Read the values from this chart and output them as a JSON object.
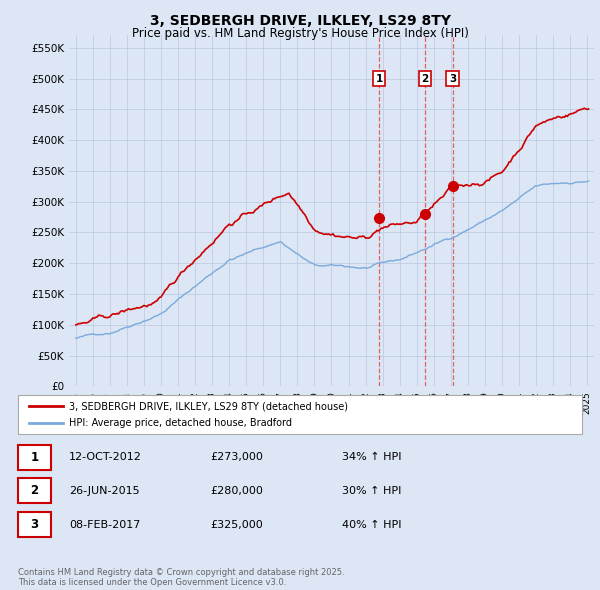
{
  "title": "3, SEDBERGH DRIVE, ILKLEY, LS29 8TY",
  "subtitle": "Price paid vs. HM Land Registry's House Price Index (HPI)",
  "ylim": [
    0,
    570000
  ],
  "yticks": [
    0,
    50000,
    100000,
    150000,
    200000,
    250000,
    300000,
    350000,
    400000,
    450000,
    500000,
    550000
  ],
  "ytick_labels": [
    "£0",
    "£50K",
    "£100K",
    "£150K",
    "£200K",
    "£250K",
    "£300K",
    "£350K",
    "£400K",
    "£450K",
    "£500K",
    "£550K"
  ],
  "house_color": "#cc0000",
  "hpi_color": "#7aaadd",
  "purchase_times": [
    2012.79,
    2015.49,
    2017.11
  ],
  "purchase_prices": [
    273000,
    280000,
    325000
  ],
  "purchase_labels": [
    "1",
    "2",
    "3"
  ],
  "legend_house": "3, SEDBERGH DRIVE, ILKLEY, LS29 8TY (detached house)",
  "legend_hpi": "HPI: Average price, detached house, Bradford",
  "table_rows": [
    [
      "1",
      "12-OCT-2012",
      "£273,000",
      "34% ↑ HPI"
    ],
    [
      "2",
      "26-JUN-2015",
      "£280,000",
      "30% ↑ HPI"
    ],
    [
      "3",
      "08-FEB-2017",
      "£325,000",
      "40% ↑ HPI"
    ]
  ],
  "footer": "Contains HM Land Registry data © Crown copyright and database right 2025.\nThis data is licensed under the Open Government Licence v3.0.",
  "background_color": "#dce6f5",
  "plot_bg_color": "#dce6f5",
  "title_fontsize": 10,
  "subtitle_fontsize": 8.5
}
